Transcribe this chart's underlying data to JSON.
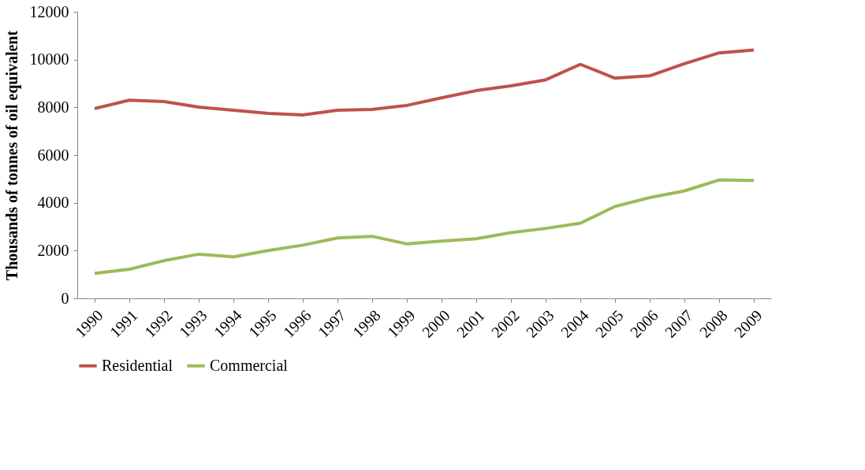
{
  "chart_data": {
    "type": "line",
    "ylabel": "Thousands of tonnes of oil equivalent",
    "categories": [
      "1990",
      "1991",
      "1992",
      "1993",
      "1994",
      "1995",
      "1996",
      "1997",
      "1998",
      "1999",
      "2000",
      "2001",
      "2002",
      "2003",
      "2004",
      "2005",
      "2006",
      "2007",
      "2008",
      "2009"
    ],
    "series": [
      {
        "name": "Residential",
        "color": "#c0504d",
        "values": [
          7950,
          8300,
          8240,
          8010,
          7880,
          7750,
          7680,
          7880,
          7910,
          8080,
          8400,
          8700,
          8900,
          9150,
          9800,
          9220,
          9320,
          9830,
          10280,
          10400
        ]
      },
      {
        "name": "Commercial",
        "color": "#9bbb59",
        "values": [
          1050,
          1220,
          1580,
          1850,
          1740,
          2000,
          2230,
          2530,
          2600,
          2280,
          2400,
          2500,
          2750,
          2930,
          3150,
          3850,
          4220,
          4500,
          4960,
          4940
        ]
      }
    ],
    "ylim": [
      0,
      12000
    ],
    "yticks": [
      0,
      2000,
      4000,
      6000,
      8000,
      10000,
      12000
    ],
    "grid": false,
    "legend": "bottom",
    "marker": "none",
    "line_style": "solid"
  }
}
